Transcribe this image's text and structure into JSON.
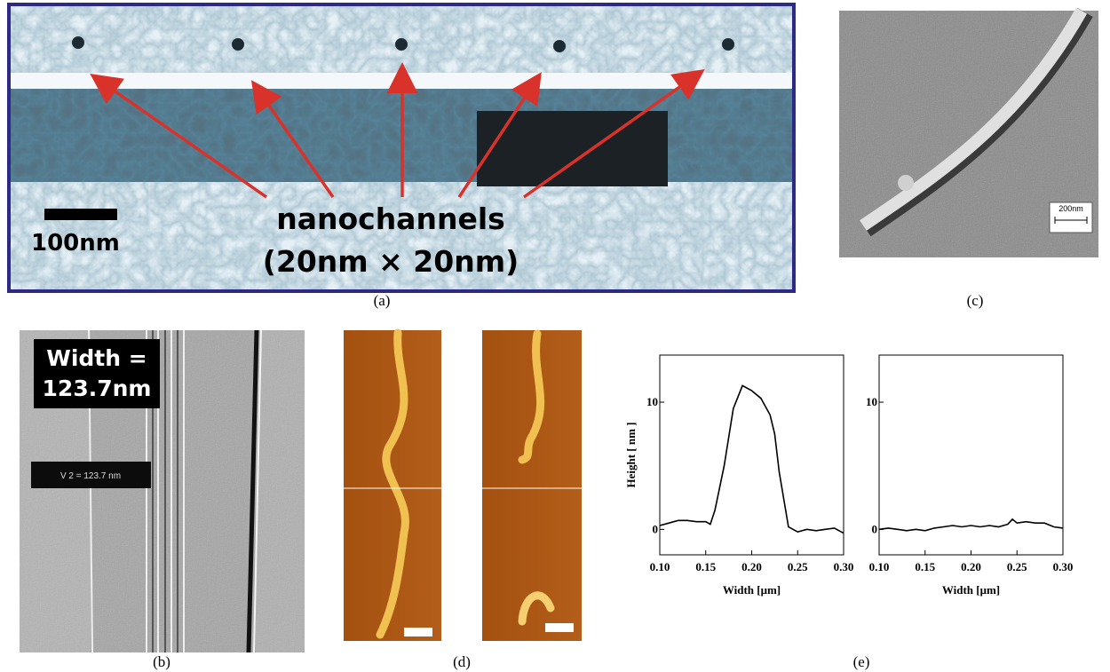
{
  "panels": {
    "a": {
      "label": "(a)",
      "scale": "100nm",
      "title": "nanochannels",
      "subtitle": "(20nm × 20nm)"
    },
    "b": {
      "label": "(b)",
      "width_line1": "Width =",
      "width_line2": "123.7nm",
      "measure": "V 2 = 123.7 nm"
    },
    "c": {
      "label": "(c)",
      "scale": "200nm"
    },
    "d": {
      "label": "(d)"
    },
    "e": {
      "label": "(e)"
    }
  },
  "chart_data": [
    {
      "type": "line",
      "ylabel": "Height [ nm ]",
      "xlabel": "Width [μm]",
      "color": "#000000",
      "x": [
        0.1,
        0.11,
        0.12,
        0.13,
        0.14,
        0.15,
        0.155,
        0.16,
        0.17,
        0.18,
        0.19,
        0.2,
        0.21,
        0.22,
        0.225,
        0.23,
        0.24,
        0.25,
        0.26,
        0.27,
        0.28,
        0.29,
        0.3
      ],
      "values": [
        0.3,
        0.5,
        0.7,
        0.7,
        0.6,
        0.6,
        0.4,
        1.5,
        5,
        9.5,
        11.3,
        10.9,
        10.3,
        9.0,
        7.5,
        4.5,
        0.2,
        -0.2,
        0.0,
        -0.1,
        0.0,
        0.1,
        -0.3
      ],
      "xlim": [
        0.1,
        0.3
      ],
      "ylim": [
        -2,
        13.7
      ],
      "xticks": [
        {
          "value": 0.1,
          "label": "0.10"
        },
        0.15,
        {
          "value": 0.2,
          "label": "0.20"
        },
        0.25,
        {
          "value": 0.3,
          "label": "0.30"
        }
      ],
      "yticks": [
        0,
        10
      ]
    },
    {
      "type": "line",
      "xlabel": "Width [μm]",
      "color": "#000000",
      "x": [
        0.1,
        0.11,
        0.12,
        0.13,
        0.14,
        0.15,
        0.16,
        0.17,
        0.18,
        0.19,
        0.2,
        0.21,
        0.22,
        0.23,
        0.24,
        0.245,
        0.25,
        0.26,
        0.27,
        0.28,
        0.29,
        0.3
      ],
      "values": [
        0,
        0.1,
        0,
        -0.1,
        0,
        -0.1,
        0.1,
        0.2,
        0.3,
        0.2,
        0.3,
        0.2,
        0.3,
        0.2,
        0.4,
        0.8,
        0.5,
        0.6,
        0.5,
        0.5,
        0.2,
        0.1
      ],
      "xlim": [
        0.1,
        0.3
      ],
      "ylim": [
        -2,
        13.7
      ],
      "xticks": [
        {
          "value": 0.1,
          "label": "0.10"
        },
        0.15,
        {
          "value": 0.2,
          "label": "0.20"
        },
        0.25,
        {
          "value": 0.3,
          "label": "0.30"
        }
      ],
      "yticks": [
        0,
        10
      ]
    }
  ]
}
